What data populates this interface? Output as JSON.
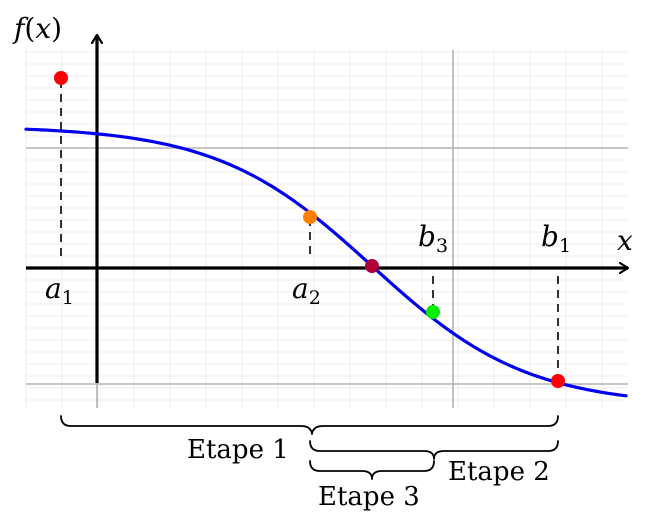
{
  "axes": {
    "y_label_f": "f",
    "y_label_paren_open": "(",
    "y_label_var": "x",
    "y_label_paren_close": ")",
    "x_label": "x"
  },
  "points": {
    "a1": {
      "letter": "a",
      "index": "1",
      "color": "#ff0000"
    },
    "a2": {
      "letter": "a",
      "index": "2",
      "color": "#ff8000"
    },
    "b3": {
      "letter": "b",
      "index": "3",
      "color": "#00ee00"
    },
    "b1": {
      "letter": "b",
      "index": "1",
      "color": "#ff0000"
    },
    "root": {
      "color": "#b0003a"
    }
  },
  "colors": {
    "curve": "#0000ee",
    "grid_major": "#b3b3b3",
    "grid_minor": "#ececec",
    "axis": "#000000"
  },
  "steps": {
    "etape1": "Etape 1",
    "etape2": "Etape 2",
    "etape3": "Etape 3"
  }
}
